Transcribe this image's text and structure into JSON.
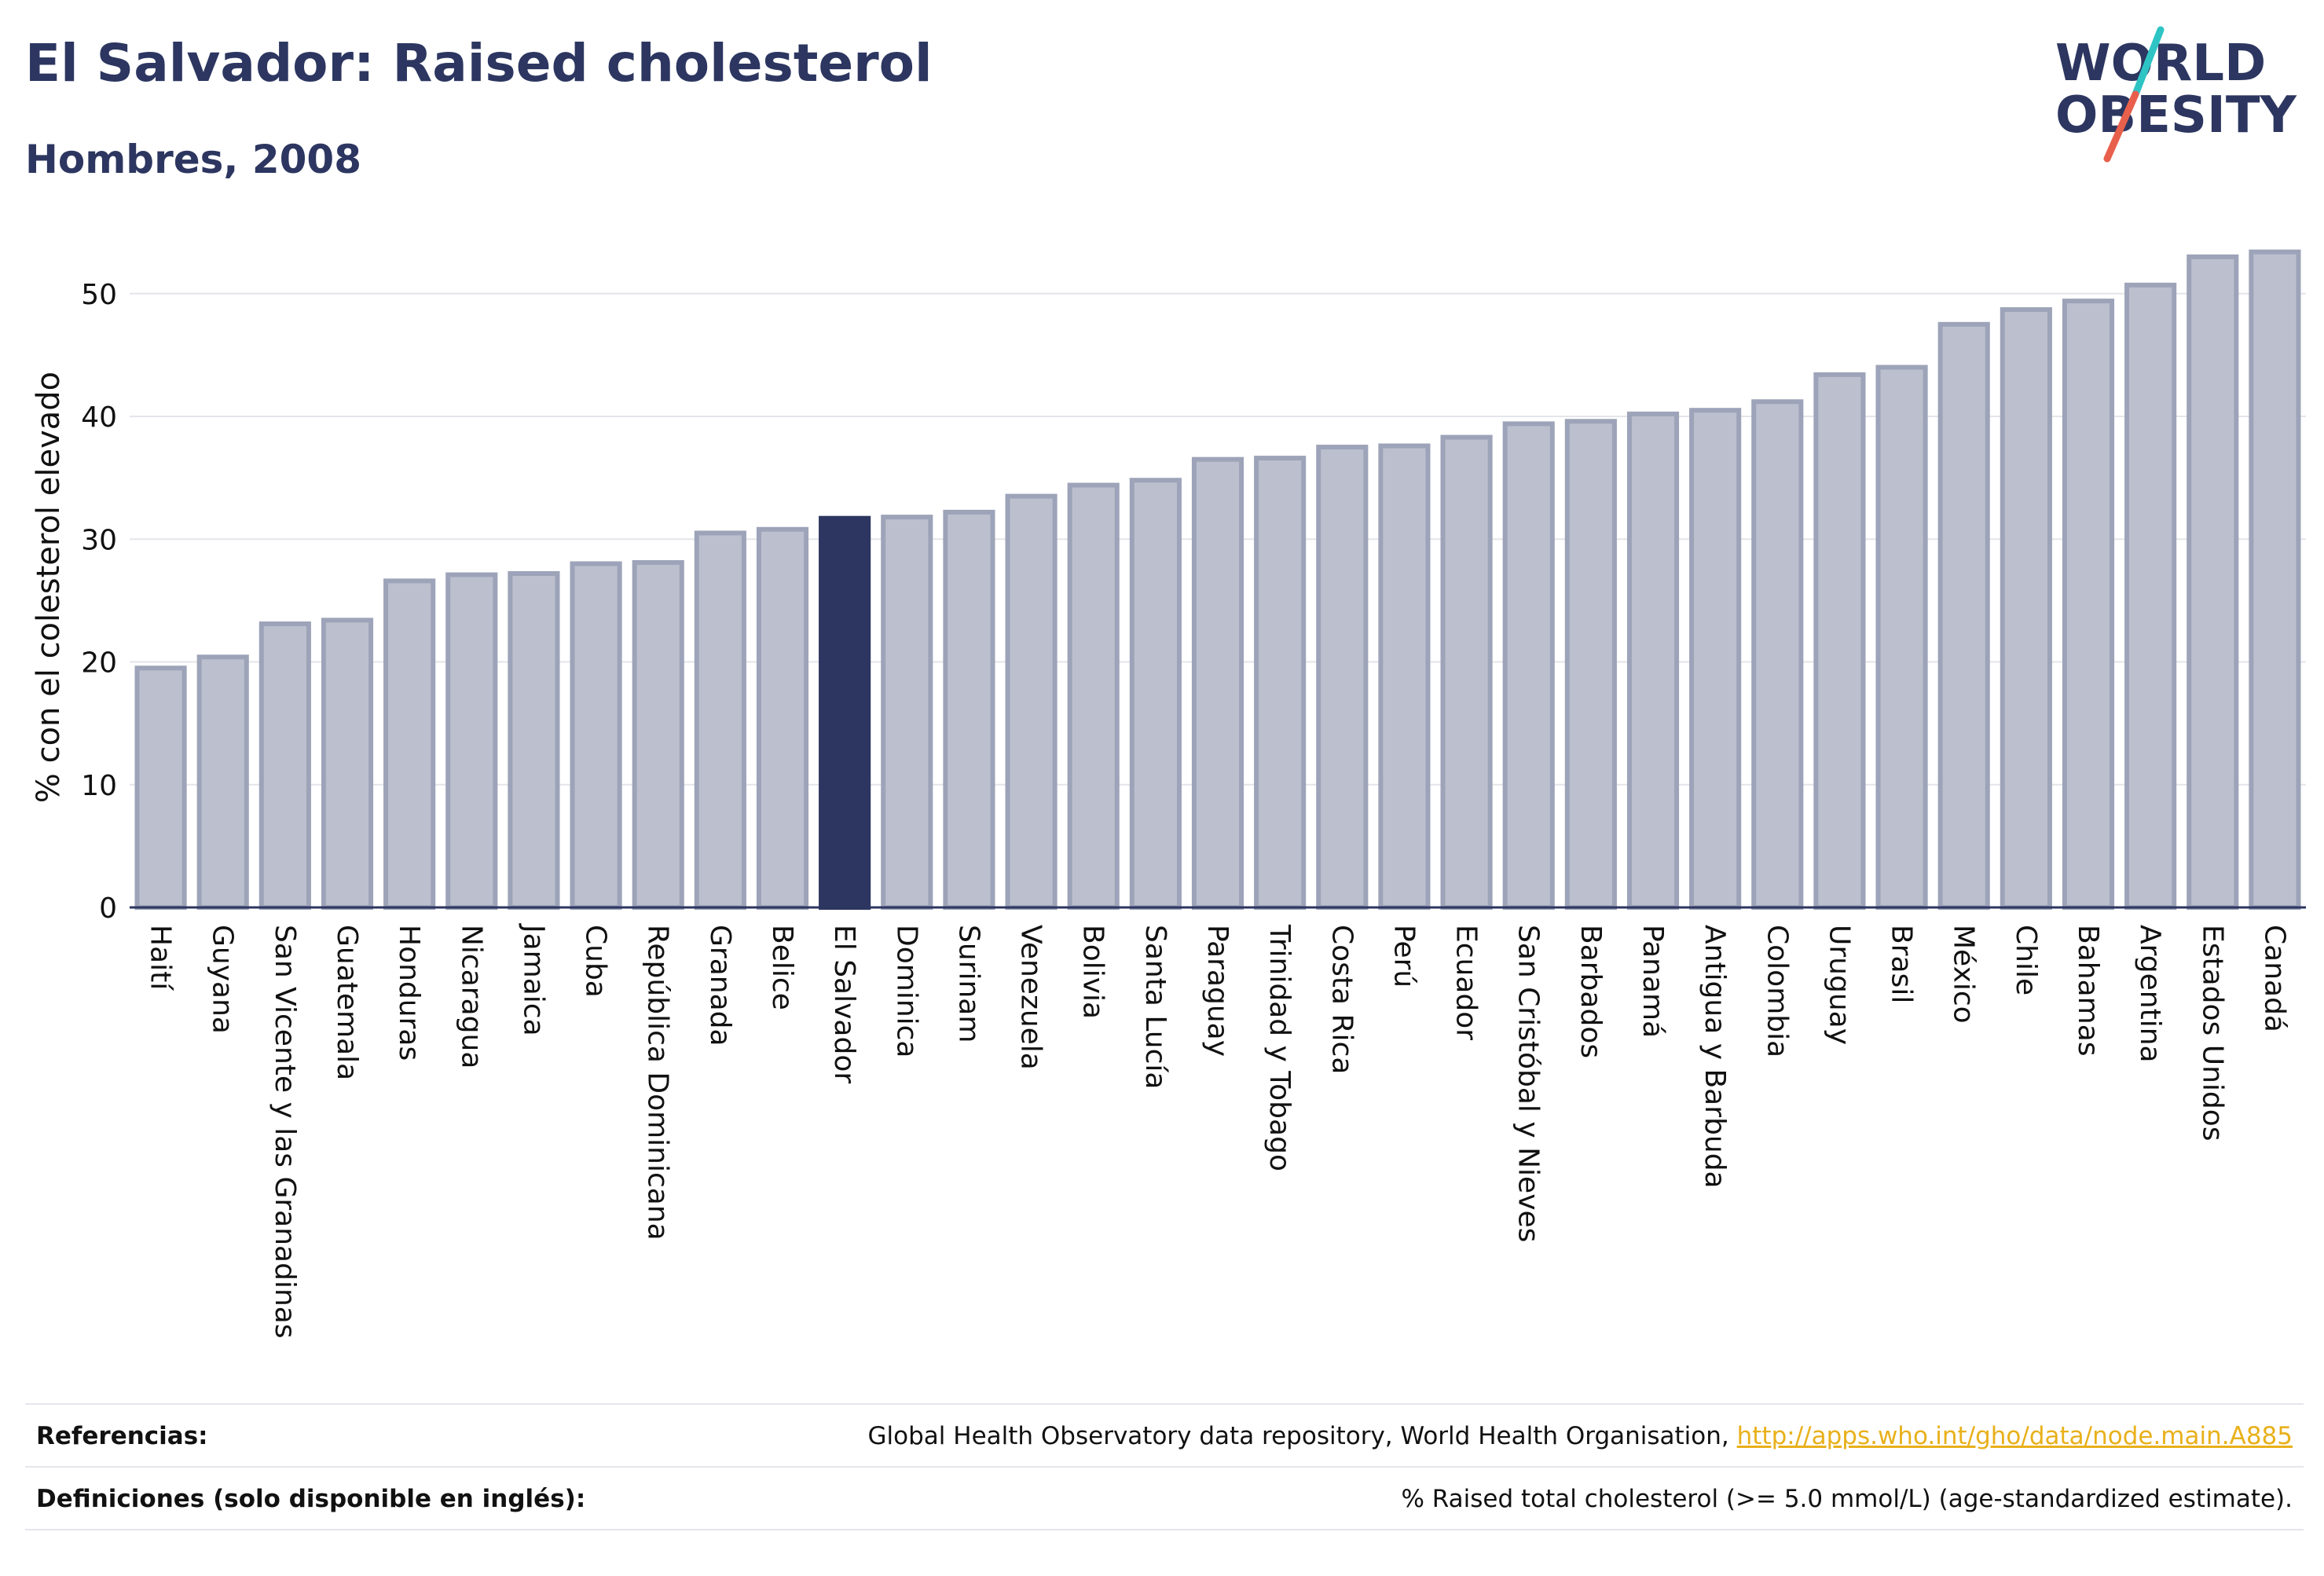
{
  "title": "El Salvador: Raised cholesterol",
  "subtitle": "Hombres, 2008",
  "logo": {
    "line1": "WORLD",
    "line2": "OBESITY",
    "accent_colors": [
      "#2ec4c4",
      "#e8604c"
    ],
    "text_color": "#2c3660"
  },
  "colors": {
    "bar": "#bcc0ce",
    "bar_stroke": "#9da3b8",
    "highlight": "#2c3660",
    "grid": "#e3e5ea",
    "title": "#2c3660",
    "link": "#e8b01a"
  },
  "chart_data": {
    "type": "bar",
    "ylabel": "% con el colesterol elevado",
    "xlabel": "",
    "ylim": [
      0,
      56
    ],
    "yticks": [
      0,
      10,
      20,
      30,
      40,
      50
    ],
    "grid": true,
    "highlight": "El Salvador",
    "categories": [
      "Haití",
      "Guyana",
      "San Vicente y las Granadinas",
      "Guatemala",
      "Honduras",
      "Nicaragua",
      "Jamaica",
      "Cuba",
      "República Dominicana",
      "Granada",
      "Belice",
      "El Salvador",
      "Dominica",
      "Surinam",
      "Venezuela",
      "Bolivia",
      "Santa Lucía",
      "Paraguay",
      "Trinidad y Tobago",
      "Costa Rica",
      "Perú",
      "Ecuador",
      "San Cristóbal y Nieves",
      "Barbados",
      "Panamá",
      "Antigua y Barbuda",
      "Colombia",
      "Uruguay",
      "Brasil",
      "México",
      "Chile",
      "Bahamas",
      "Argentina",
      "Estados Unidos",
      "Canadá"
    ],
    "values": [
      19.5,
      20.4,
      23.1,
      23.4,
      26.6,
      27.1,
      27.2,
      28.0,
      28.1,
      30.5,
      30.8,
      31.7,
      31.8,
      32.2,
      33.5,
      34.4,
      34.8,
      36.5,
      36.6,
      37.5,
      37.6,
      38.3,
      39.4,
      39.6,
      40.2,
      40.5,
      41.2,
      43.4,
      44.0,
      47.5,
      48.7,
      49.4,
      50.7,
      53.0,
      53.4
    ]
  },
  "footer": {
    "references_label": "Referencias:",
    "references_text": "Global Health Observatory data repository, World Health Organisation,",
    "references_link": "http://apps.who.int/gho/data/node.main.A885",
    "definitions_label": "Definiciones (solo disponible en inglés):",
    "definitions_text": "% Raised total cholesterol (>= 5.0 mmol/L) (age-standardized estimate)."
  }
}
